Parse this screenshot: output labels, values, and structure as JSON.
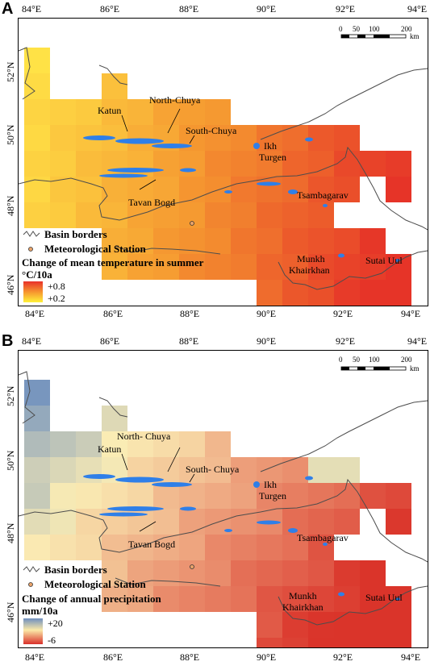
{
  "panels": [
    {
      "letter": "A",
      "legend": {
        "basin_borders": "Basin borders",
        "station": "Meteorological Station",
        "title": "Change of mean temperature in summer",
        "unit": "°C/10a",
        "max_label": "+0.8",
        "min_label": "+0.2",
        "colors": {
          "high": "#e8312a",
          "low": "#fff23a"
        }
      },
      "scalebar": {
        "labels": [
          "0",
          "50",
          "100",
          "200"
        ],
        "unit": "km"
      },
      "places": {
        "katun": "Katun",
        "north_chuya": "North-Chuya",
        "south_chuya": "South-Chuya",
        "ikh_turgen_1": "Ikh",
        "ikh_turgen_2": "Turgen",
        "tavan_bogd": "Tavan Bogd",
        "tsambagarav": "Tsambagarav",
        "munkh_1": "Munkh",
        "munkh_2": "Khairkhan",
        "sutai": "Sutai Uul"
      }
    },
    {
      "letter": "B",
      "legend": {
        "basin_borders": "Basin borders",
        "station": "Meteorological Station",
        "title": "Change of annual precipitation",
        "unit": "mm/10a",
        "max_label": "+20",
        "min_label": "-6",
        "colors": {
          "high": "#6f8fbf",
          "mid": "#fbe9a8",
          "low": "#d9302a"
        }
      },
      "scalebar": {
        "labels": [
          "0",
          "50",
          "100",
          "200"
        ],
        "unit": "km"
      },
      "places": {
        "katun": "Katun",
        "north_chuya": "North- Chuya",
        "south_chuya": "South- Chuya",
        "ikh_turgen_1": "Ikh",
        "ikh_turgen_2": "Turgen",
        "tavan_bogd": "Tavan Bogd",
        "tsambagarav": "Tsambagarav",
        "munkh_1": "Munkh",
        "munkh_2": "Khairkhan",
        "sutai": "Sutai Uul"
      }
    }
  ],
  "axes": {
    "lon_labels": [
      "84°E",
      "86°E",
      "88°E",
      "90°E",
      "92°E",
      "94°E"
    ],
    "lat_labels": [
      "52°N",
      "50°N",
      "48°N",
      "46°N"
    ]
  },
  "colors": {
    "glacier": "#2f7fe8",
    "border": "#555555",
    "station_fill": "#e9a36a"
  }
}
